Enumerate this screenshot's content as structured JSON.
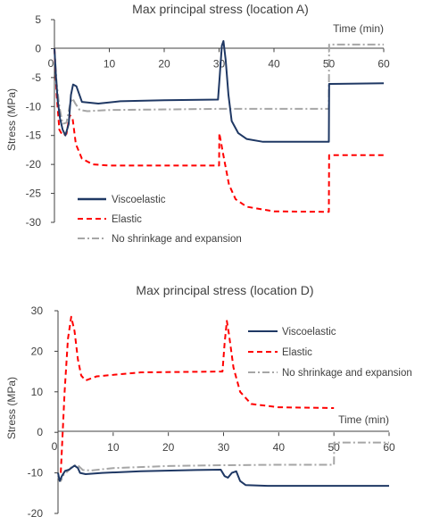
{
  "chart_data": [
    {
      "type": "line",
      "title": "Max principal stress (location A)",
      "xlabel": "Time (min)",
      "ylabel": "Stress (MPa)",
      "xlim": [
        0,
        60
      ],
      "ylim": [
        -30,
        5
      ],
      "x_ticks": [
        10,
        20,
        30,
        40,
        50,
        60
      ],
      "y_ticks": [
        5,
        0,
        -5,
        -10,
        -15,
        -20,
        -25,
        -30
      ],
      "x_tick_labels": [
        "10",
        "20",
        "30",
        "40",
        "50",
        "60"
      ],
      "y_tick_labels": [
        "5",
        "0",
        "-5",
        "-10",
        "-15",
        "-20",
        "-25",
        "-30"
      ],
      "origin_label": "0",
      "grid": false,
      "legend_position": "bottom-left",
      "series": [
        {
          "name": "Viscoelastic",
          "color": "#1f3864",
          "style": "solid",
          "points": [
            [
              0,
              0
            ],
            [
              0.3,
              -5
            ],
            [
              0.6,
              -9
            ],
            [
              1,
              -12
            ],
            [
              1.5,
              -14
            ],
            [
              2,
              -15
            ],
            [
              2.6,
              -13
            ],
            [
              3,
              -8
            ],
            [
              3.4,
              -6.2
            ],
            [
              4,
              -6.5
            ],
            [
              5,
              -9.2
            ],
            [
              8,
              -9.5
            ],
            [
              12,
              -9.1
            ],
            [
              20,
              -8.9
            ],
            [
              29.8,
              -8.8
            ],
            [
              30.1,
              -5
            ],
            [
              30.5,
              0.5
            ],
            [
              30.8,
              1.3
            ],
            [
              31.2,
              -2
            ],
            [
              31.7,
              -8
            ],
            [
              32.3,
              -12.5
            ],
            [
              33.5,
              -14.6
            ],
            [
              35,
              -15.6
            ],
            [
              38,
              -16.1
            ],
            [
              50,
              -16.1
            ],
            [
              50.05,
              -6.1
            ],
            [
              60,
              -6.0
            ]
          ]
        },
        {
          "name": "Elastic",
          "color": "#ff0000",
          "style": "dashed",
          "points": [
            [
              0,
              0
            ],
            [
              0.4,
              -8
            ],
            [
              0.9,
              -14
            ],
            [
              1.5,
              -15
            ],
            [
              2.2,
              -14.7
            ],
            [
              2.8,
              -11.5
            ],
            [
              3.3,
              -12
            ],
            [
              3.9,
              -16.5
            ],
            [
              5,
              -19
            ],
            [
              7,
              -20
            ],
            [
              10,
              -20.2
            ],
            [
              30,
              -20.2
            ],
            [
              30.05,
              -14.6
            ],
            [
              30.7,
              -18
            ],
            [
              31.8,
              -23.5
            ],
            [
              33,
              -26
            ],
            [
              35,
              -27.3
            ],
            [
              40,
              -28.1
            ],
            [
              50,
              -28.2
            ],
            [
              50.05,
              -18.4
            ],
            [
              60,
              -18.4
            ]
          ]
        },
        {
          "name": "No shrinkage and expansion",
          "color": "#a6a6a6",
          "style": "dashdot",
          "points": [
            [
              0,
              0
            ],
            [
              0.4,
              -6
            ],
            [
              0.9,
              -10
            ],
            [
              1.5,
              -13
            ],
            [
              2.2,
              -12.8
            ],
            [
              2.8,
              -9.8
            ],
            [
              3.3,
              -8.6
            ],
            [
              3.8,
              -9.5
            ],
            [
              4.6,
              -10.6
            ],
            [
              6,
              -10.8
            ],
            [
              10,
              -10.6
            ],
            [
              30,
              -10.4
            ],
            [
              50,
              -10.4
            ],
            [
              50.05,
              0.7
            ],
            [
              60,
              0.7
            ]
          ]
        }
      ]
    },
    {
      "type": "line",
      "title": "Max principal stress (location D)",
      "xlabel": "Time (min)",
      "ylabel": "Stress (MPa)",
      "xlim": [
        0,
        60
      ],
      "ylim": [
        -20,
        30
      ],
      "x_ticks": [
        10,
        20,
        30,
        40,
        50,
        60
      ],
      "y_ticks": [
        30,
        20,
        10,
        0,
        -10,
        -20
      ],
      "x_tick_labels": [
        "10",
        "20",
        "30",
        "40",
        "50",
        "60"
      ],
      "y_tick_labels": [
        "30",
        "20",
        "10",
        "0",
        "-10",
        "-20"
      ],
      "origin_label": "0",
      "grid": false,
      "legend_position": "top-right",
      "series": [
        {
          "name": "Viscoelastic",
          "color": "#1f3864",
          "style": "solid",
          "points": [
            [
              0,
              -10
            ],
            [
              0.3,
              -12
            ],
            [
              0.7,
              -10.8
            ],
            [
              1.3,
              -9.5
            ],
            [
              2,
              -9.2
            ],
            [
              3,
              -8.2
            ],
            [
              3.6,
              -8.8
            ],
            [
              4,
              -10
            ],
            [
              5,
              -10.3
            ],
            [
              8,
              -10
            ],
            [
              15,
              -9.6
            ],
            [
              25,
              -9.3
            ],
            [
              29.5,
              -9.2
            ],
            [
              30.2,
              -10.8
            ],
            [
              30.8,
              -11.2
            ],
            [
              31.5,
              -10
            ],
            [
              32.3,
              -9.6
            ],
            [
              33,
              -12
            ],
            [
              34,
              -13
            ],
            [
              38,
              -13.2
            ],
            [
              50,
              -13.2
            ],
            [
              60,
              -13.2
            ]
          ]
        },
        {
          "name": "Elastic",
          "color": "#ff0000",
          "style": "dashed",
          "points": [
            [
              0.5,
              -10
            ],
            [
              1.2,
              10
            ],
            [
              1.8,
              23
            ],
            [
              2.4,
              28.5
            ],
            [
              3,
              25
            ],
            [
              3.6,
              18
            ],
            [
              4.2,
              14
            ],
            [
              5,
              12.8
            ],
            [
              7,
              13.8
            ],
            [
              15,
              14.8
            ],
            [
              29.8,
              15
            ],
            [
              30.2,
              22
            ],
            [
              30.6,
              27.5
            ],
            [
              31,
              24
            ],
            [
              31.8,
              16
            ],
            [
              33,
              10
            ],
            [
              35,
              7
            ],
            [
              40,
              6.2
            ],
            [
              50,
              6
            ]
          ]
        },
        {
          "name": "No shrinkage and expansion",
          "color": "#a6a6a6",
          "style": "dashdot",
          "points": [
            [
              0,
              -11
            ],
            [
              0.5,
              -12
            ],
            [
              1,
              -10.5
            ],
            [
              1.6,
              -9.8
            ],
            [
              2.5,
              -8.5
            ],
            [
              3.5,
              -8
            ],
            [
              4.5,
              -9.3
            ],
            [
              6,
              -9.4
            ],
            [
              10,
              -8.8
            ],
            [
              20,
              -8.3
            ],
            [
              30,
              -8.1
            ],
            [
              40,
              -8
            ],
            [
              50,
              -8
            ],
            [
              50.05,
              -2.5
            ],
            [
              60,
              -2.5
            ]
          ]
        }
      ]
    }
  ]
}
